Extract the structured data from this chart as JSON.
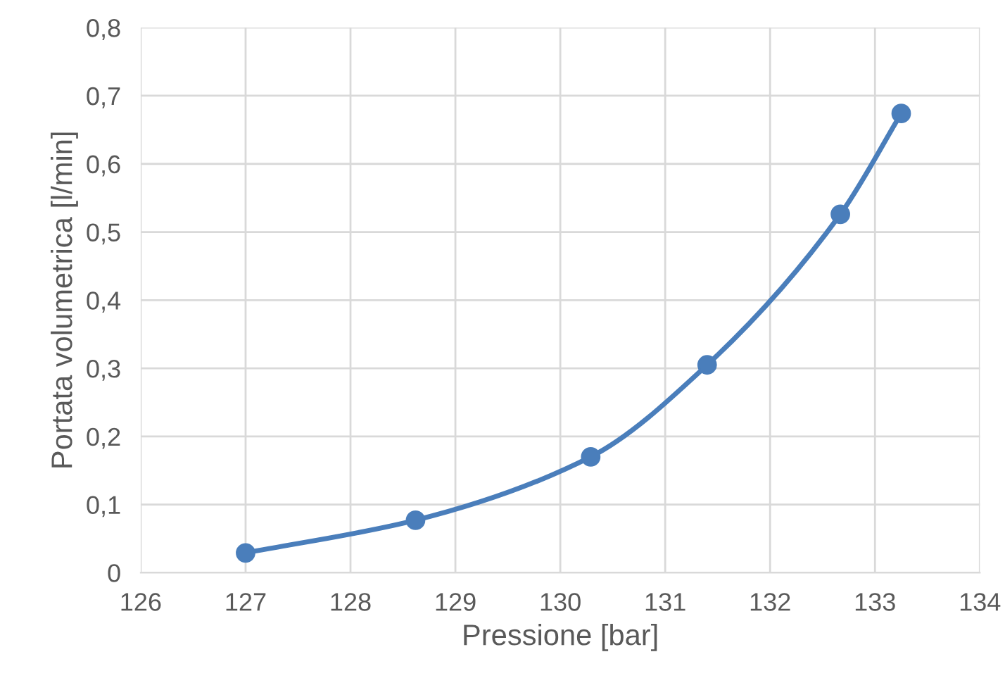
{
  "chart_data": {
    "type": "line",
    "xlabel": "Pressione [bar]",
    "ylabel": "Portata volumetrica [l/min]",
    "x": [
      127.0,
      128.62,
      130.29,
      131.4,
      132.67,
      133.25
    ],
    "series": [
      {
        "color": "#4a7ebb",
        "values": [
          0.029,
          0.077,
          0.17,
          0.305,
          0.526,
          0.674
        ]
      }
    ],
    "xlim": [
      126,
      134
    ],
    "xticks": [
      126,
      127,
      128,
      129,
      130,
      131,
      132,
      133,
      134
    ],
    "ylim": [
      0,
      0.8
    ],
    "yticks": [
      0,
      {
        "value": 0.1,
        "label": "0,1"
      },
      {
        "value": 0.2,
        "label": "0,2"
      },
      {
        "value": 0.3,
        "label": "0,3"
      },
      {
        "value": 0.4,
        "label": "0,4"
      },
      {
        "value": 0.5,
        "label": "0,5"
      },
      {
        "value": 0.6,
        "label": "0,6"
      },
      {
        "value": 0.7,
        "label": "0,7"
      },
      {
        "value": 0.8,
        "label": "0,8"
      }
    ],
    "grid": true,
    "marker": "circle",
    "line_style": "solid",
    "legend": false
  }
}
